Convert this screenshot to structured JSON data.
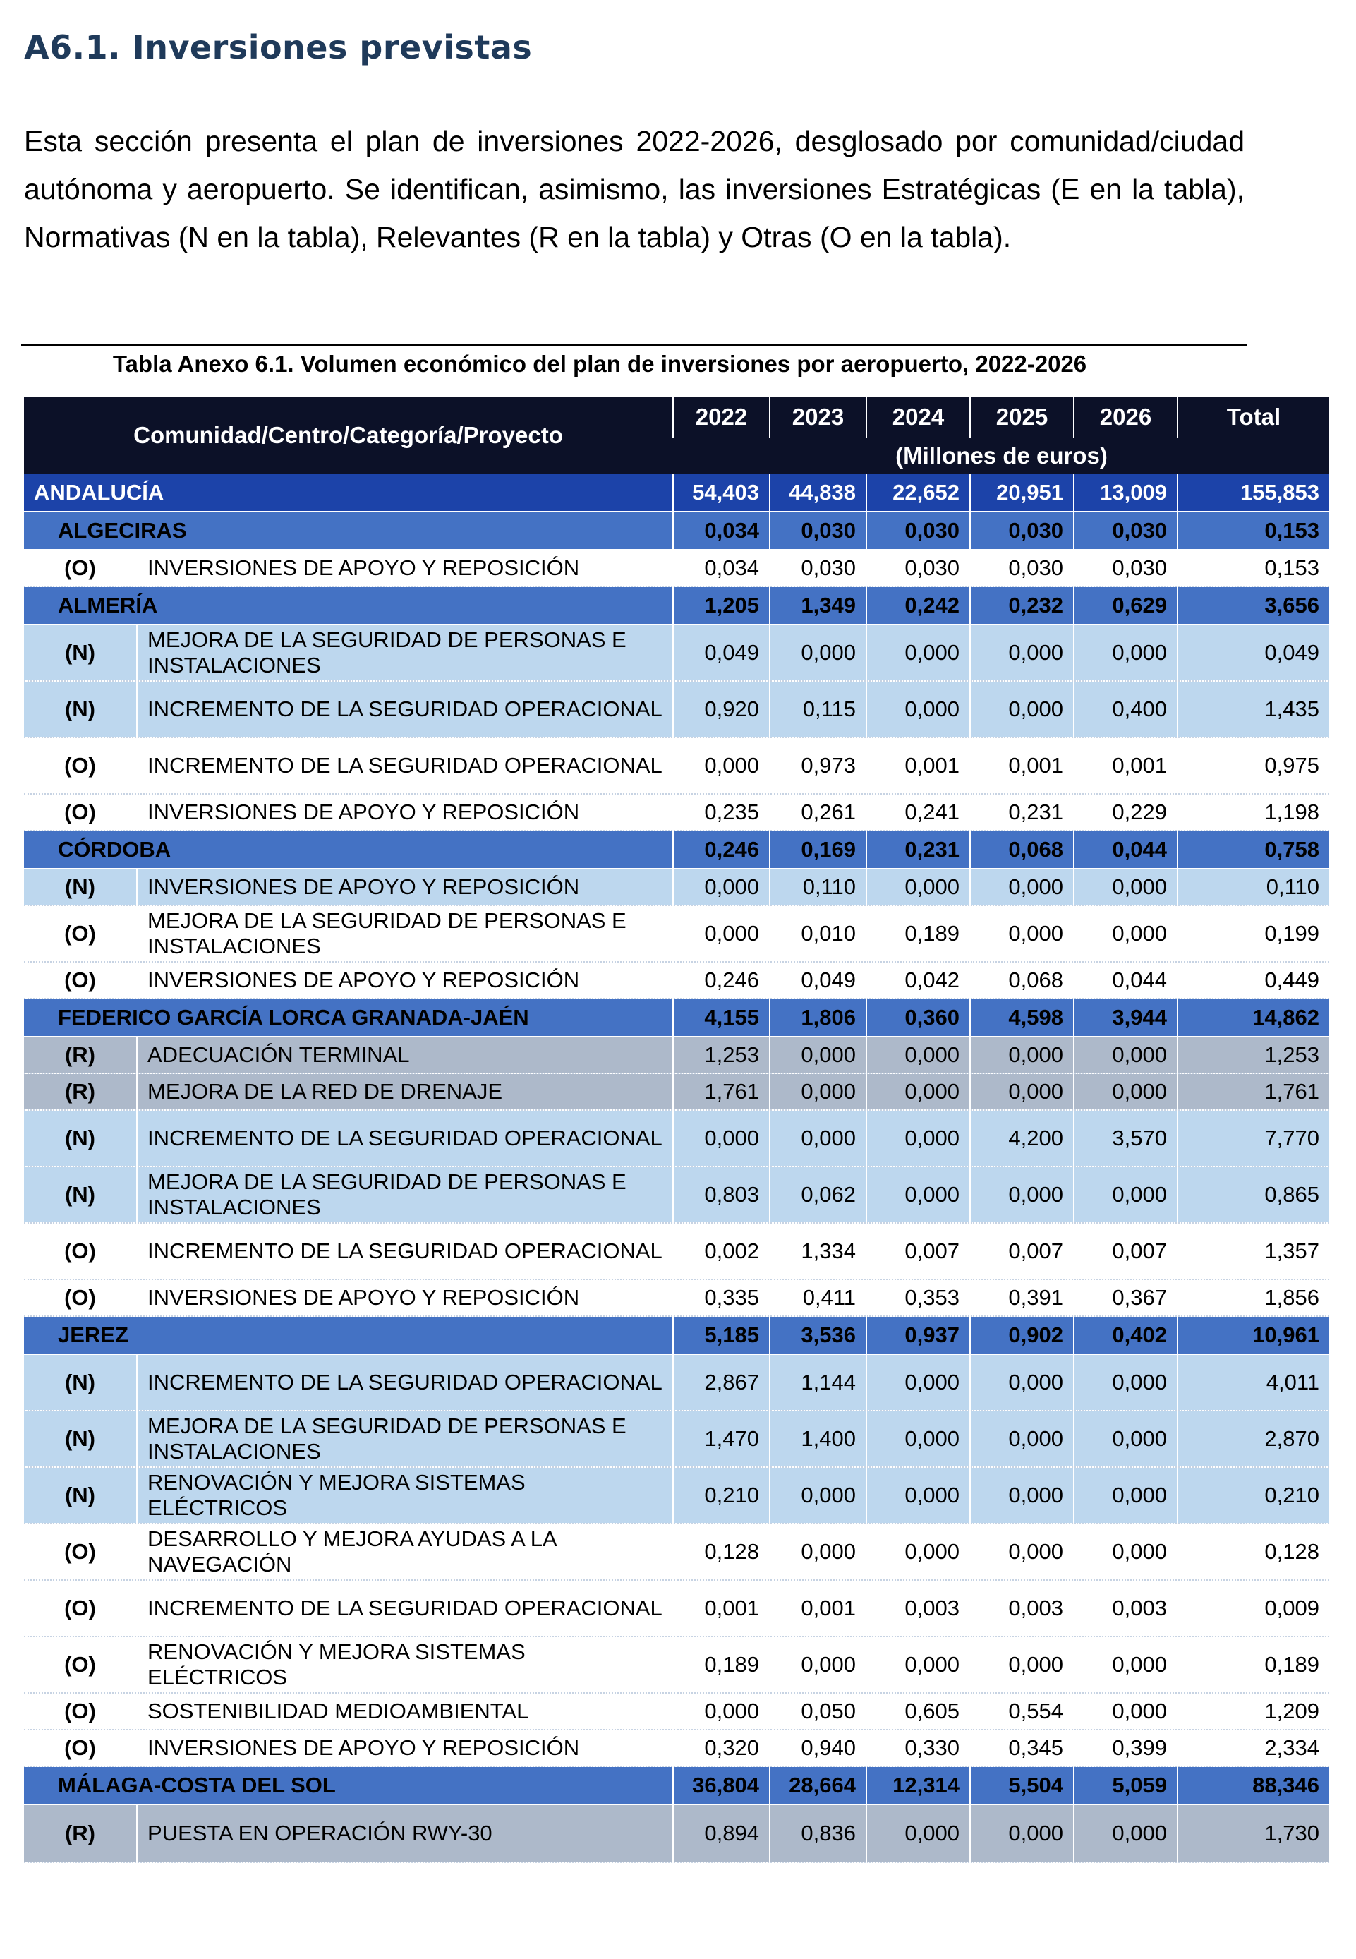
{
  "section": {
    "title": "A6.1. Inversiones previstas",
    "intro": "Esta sección presenta el plan de inversiones 2022-2026, desglosado por comunidad/ciudad autónoma y aeropuerto. Se identifican, asimismo, las inversiones Estratégicas (E en la tabla), Normativas (N en la tabla), Relevantes (R en la tabla) y Otras (O en la tabla)."
  },
  "table": {
    "caption": "Tabla Anexo 6.1. Volumen económico del plan de inversiones por aeropuerto, 2022-2026",
    "header": {
      "name_col": "Comunidad/Centro/Categoría/Proyecto",
      "years": [
        "2022",
        "2023",
        "2024",
        "2025",
        "2026",
        "Total"
      ],
      "units": "(Millones de euros)"
    },
    "colors": {
      "header_bg": "#0c1128",
      "region_bg": "#1c43a9",
      "airport_bg": "#4472c4",
      "normative_bg": "#bdd7ee",
      "relevant_bg": "#adb9ca",
      "other_bg": "#ffffff"
    },
    "rows": [
      {
        "level": "region",
        "name": "ANDALUCÍA",
        "values": [
          "54,403",
          "44,838",
          "22,652",
          "20,951",
          "13,009",
          "155,853"
        ]
      },
      {
        "level": "airport",
        "name": "ALGECIRAS",
        "values": [
          "0,034",
          "0,030",
          "0,030",
          "0,030",
          "0,030",
          "0,153"
        ]
      },
      {
        "level": "project",
        "cat": "O",
        "code": "(O)",
        "lines": 1,
        "name": "INVERSIONES DE APOYO Y REPOSICIÓN",
        "values": [
          "0,034",
          "0,030",
          "0,030",
          "0,030",
          "0,030",
          "0,153"
        ]
      },
      {
        "level": "airport",
        "name": "ALMERÍA",
        "values": [
          "1,205",
          "1,349",
          "0,242",
          "0,232",
          "0,629",
          "3,656"
        ]
      },
      {
        "level": "project",
        "cat": "N",
        "code": "(N)",
        "lines": 2,
        "name": "MEJORA DE LA SEGURIDAD DE PERSONAS E INSTALACIONES",
        "values": [
          "0,049",
          "0,000",
          "0,000",
          "0,000",
          "0,000",
          "0,049"
        ]
      },
      {
        "level": "project",
        "cat": "N",
        "code": "(N)",
        "lines": 2,
        "name": "INCREMENTO DE LA SEGURIDAD OPERACIONAL",
        "values": [
          "0,920",
          "0,115",
          "0,000",
          "0,000",
          "0,400",
          "1,435"
        ]
      },
      {
        "level": "project",
        "cat": "O",
        "code": "(O)",
        "lines": 2,
        "name": "INCREMENTO DE LA SEGURIDAD OPERACIONAL",
        "values": [
          "0,000",
          "0,973",
          "0,001",
          "0,001",
          "0,001",
          "0,975"
        ]
      },
      {
        "level": "project",
        "cat": "O",
        "code": "(O)",
        "lines": 1,
        "name": "INVERSIONES DE APOYO Y REPOSICIÓN",
        "values": [
          "0,235",
          "0,261",
          "0,241",
          "0,231",
          "0,229",
          "1,198"
        ]
      },
      {
        "level": "airport",
        "name": "CÓRDOBA",
        "values": [
          "0,246",
          "0,169",
          "0,231",
          "0,068",
          "0,044",
          "0,758"
        ]
      },
      {
        "level": "project",
        "cat": "N",
        "code": "(N)",
        "lines": 1,
        "name": "INVERSIONES DE APOYO Y REPOSICIÓN",
        "values": [
          "0,000",
          "0,110",
          "0,000",
          "0,000",
          "0,000",
          "0,110"
        ]
      },
      {
        "level": "project",
        "cat": "O",
        "code": "(O)",
        "lines": 2,
        "name": "MEJORA DE LA SEGURIDAD DE PERSONAS E INSTALACIONES",
        "values": [
          "0,000",
          "0,010",
          "0,189",
          "0,000",
          "0,000",
          "0,199"
        ]
      },
      {
        "level": "project",
        "cat": "O",
        "code": "(O)",
        "lines": 1,
        "name": "INVERSIONES DE APOYO Y REPOSICIÓN",
        "values": [
          "0,246",
          "0,049",
          "0,042",
          "0,068",
          "0,044",
          "0,449"
        ]
      },
      {
        "level": "airport",
        "name": "FEDERICO GARCÍA LORCA GRANADA-JAÉN",
        "values": [
          "4,155",
          "1,806",
          "0,360",
          "4,598",
          "3,944",
          "14,862"
        ]
      },
      {
        "level": "project",
        "cat": "R",
        "code": "(R)",
        "lines": 1,
        "name": "ADECUACIÓN TERMINAL",
        "values": [
          "1,253",
          "0,000",
          "0,000",
          "0,000",
          "0,000",
          "1,253"
        ]
      },
      {
        "level": "project",
        "cat": "R",
        "code": "(R)",
        "lines": 1,
        "name": "MEJORA DE LA RED DE DRENAJE",
        "values": [
          "1,761",
          "0,000",
          "0,000",
          "0,000",
          "0,000",
          "1,761"
        ]
      },
      {
        "level": "project",
        "cat": "N",
        "code": "(N)",
        "lines": 2,
        "name": "INCREMENTO DE LA SEGURIDAD OPERACIONAL",
        "values": [
          "0,000",
          "0,000",
          "0,000",
          "4,200",
          "3,570",
          "7,770"
        ]
      },
      {
        "level": "project",
        "cat": "N",
        "code": "(N)",
        "lines": 2,
        "name": "MEJORA DE LA SEGURIDAD DE PERSONAS E INSTALACIONES",
        "values": [
          "0,803",
          "0,062",
          "0,000",
          "0,000",
          "0,000",
          "0,865"
        ]
      },
      {
        "level": "project",
        "cat": "O",
        "code": "(O)",
        "lines": 2,
        "name": "INCREMENTO DE LA SEGURIDAD OPERACIONAL",
        "values": [
          "0,002",
          "1,334",
          "0,007",
          "0,007",
          "0,007",
          "1,357"
        ]
      },
      {
        "level": "project",
        "cat": "O",
        "code": "(O)",
        "lines": 1,
        "name": "INVERSIONES DE APOYO Y REPOSICIÓN",
        "values": [
          "0,335",
          "0,411",
          "0,353",
          "0,391",
          "0,367",
          "1,856"
        ]
      },
      {
        "level": "airport",
        "name": "JEREZ",
        "values": [
          "5,185",
          "3,536",
          "0,937",
          "0,902",
          "0,402",
          "10,961"
        ]
      },
      {
        "level": "project",
        "cat": "N",
        "code": "(N)",
        "lines": 2,
        "name": "INCREMENTO DE LA SEGURIDAD OPERACIONAL",
        "values": [
          "2,867",
          "1,144",
          "0,000",
          "0,000",
          "0,000",
          "4,011"
        ]
      },
      {
        "level": "project",
        "cat": "N",
        "code": "(N)",
        "lines": 2,
        "name": "MEJORA DE LA SEGURIDAD DE PERSONAS E INSTALACIONES",
        "values": [
          "1,470",
          "1,400",
          "0,000",
          "0,000",
          "0,000",
          "2,870"
        ]
      },
      {
        "level": "project",
        "cat": "N",
        "code": "(N)",
        "lines": 2,
        "name": "RENOVACIÓN Y MEJORA SISTEMAS ELÉCTRICOS",
        "values": [
          "0,210",
          "0,000",
          "0,000",
          "0,000",
          "0,000",
          "0,210"
        ]
      },
      {
        "level": "project",
        "cat": "O",
        "code": "(O)",
        "lines": 2,
        "name": "DESARROLLO Y MEJORA AYUDAS A LA NAVEGACIÓN",
        "values": [
          "0,128",
          "0,000",
          "0,000",
          "0,000",
          "0,000",
          "0,128"
        ]
      },
      {
        "level": "project",
        "cat": "O",
        "code": "(O)",
        "lines": 2,
        "name": "INCREMENTO DE LA SEGURIDAD OPERACIONAL",
        "values": [
          "0,001",
          "0,001",
          "0,003",
          "0,003",
          "0,003",
          "0,009"
        ]
      },
      {
        "level": "project",
        "cat": "O",
        "code": "(O)",
        "lines": 2,
        "name": "RENOVACIÓN Y MEJORA SISTEMAS ELÉCTRICOS",
        "values": [
          "0,189",
          "0,000",
          "0,000",
          "0,000",
          "0,000",
          "0,189"
        ]
      },
      {
        "level": "project",
        "cat": "O",
        "code": "(O)",
        "lines": 1,
        "name": "SOSTENIBILIDAD MEDIOAMBIENTAL",
        "values": [
          "0,000",
          "0,050",
          "0,605",
          "0,554",
          "0,000",
          "1,209"
        ]
      },
      {
        "level": "project",
        "cat": "O",
        "code": "(O)",
        "lines": 1,
        "name": "INVERSIONES DE APOYO Y REPOSICIÓN",
        "values": [
          "0,320",
          "0,940",
          "0,330",
          "0,345",
          "0,399",
          "2,334"
        ]
      },
      {
        "level": "airport",
        "name": "MÁLAGA-COSTA DEL SOL",
        "values": [
          "36,804",
          "28,664",
          "12,314",
          "5,504",
          "5,059",
          "88,346"
        ]
      },
      {
        "level": "project",
        "cat": "R",
        "code": "(R)",
        "lines": 3,
        "name": "PUESTA EN OPERACIÓN RWY-30",
        "values": [
          "0,894",
          "0,836",
          "0,000",
          "0,000",
          "0,000",
          "1,730"
        ]
      }
    ]
  }
}
